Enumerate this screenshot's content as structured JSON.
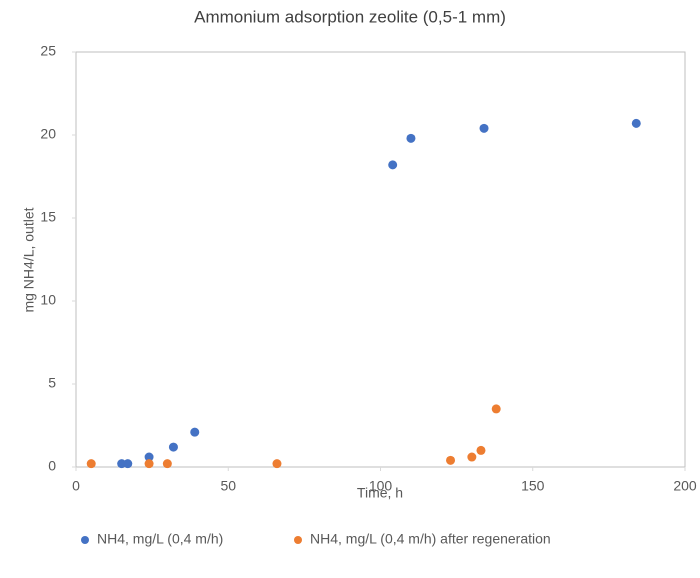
{
  "chart_data": {
    "type": "scatter",
    "title": "Ammonium adsorption zeolite (0,5-1 mm)",
    "x_label": "Time, h",
    "y_label": "mg NH4/L, outlet",
    "xlim": [
      0,
      200
    ],
    "xticks": [
      0,
      50,
      100,
      150,
      200
    ],
    "ylim": [
      0,
      25
    ],
    "yticks": [
      0,
      5,
      10,
      15,
      20,
      25
    ],
    "grid": false,
    "legend": "bottom",
    "series": [
      {
        "name": "NH4, mg/L (0,4 m/h)",
        "color": "#4472c4",
        "x": [
          15,
          17,
          24,
          32,
          39,
          104,
          110,
          134,
          184
        ],
        "values": [
          0.2,
          0.2,
          0.6,
          1.2,
          2.1,
          18.2,
          19.8,
          20.4,
          20.7
        ]
      },
      {
        "name": "NH4, mg/L (0,4 m/h) after regeneration",
        "color": "#ed7d31",
        "x": [
          5,
          24,
          30,
          66,
          123,
          130,
          133,
          138
        ],
        "values": [
          0.2,
          0.2,
          0.2,
          0.2,
          0.4,
          0.6,
          1.0,
          3.5
        ]
      }
    ]
  }
}
